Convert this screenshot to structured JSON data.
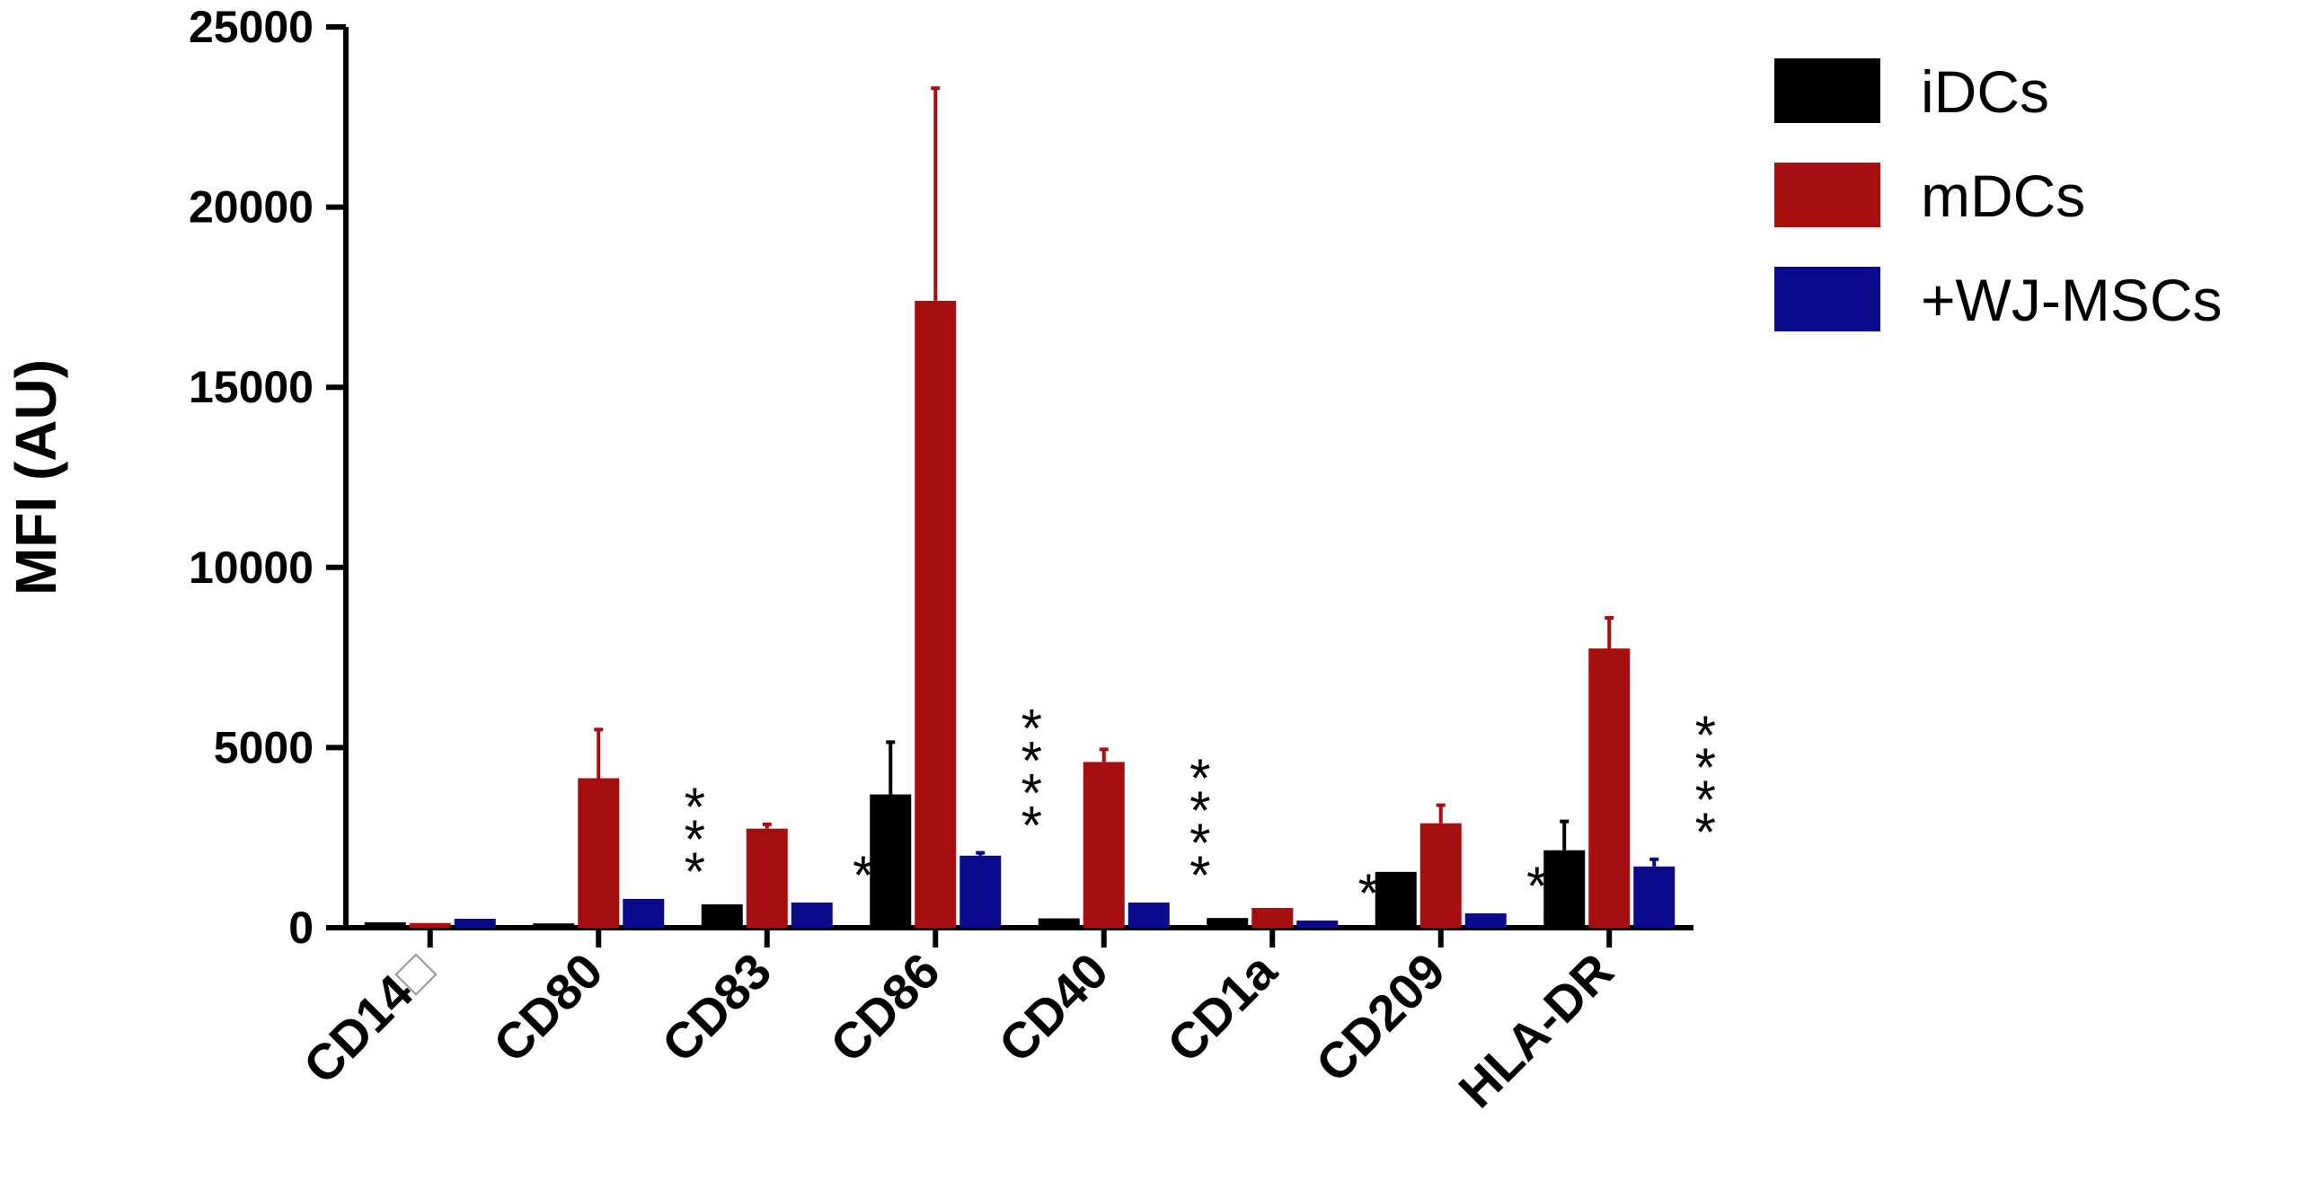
{
  "chart_data": {
    "type": "bar",
    "ylabel": "MFI (AU)",
    "xlabel": "",
    "ylim": [
      0,
      25000
    ],
    "yticks": [
      "0",
      "5000",
      "10000",
      "15000",
      "20000",
      "25000"
    ],
    "categories": [
      "CD14",
      "CD80",
      "CD83",
      "CD86",
      "CD40",
      "CD1a",
      "CD209",
      "HLA-DR"
    ],
    "category_glyphs": [
      "□",
      "",
      "",
      "",
      "",
      "",
      "",
      ""
    ],
    "series": [
      {
        "name": "iDCs",
        "color": "#000000",
        "values": [
          150,
          120,
          650,
          3700,
          260,
          270,
          1550,
          2150
        ],
        "errors": [
          0,
          0,
          0,
          1450,
          0,
          0,
          0,
          800
        ]
      },
      {
        "name": "mDCs",
        "color": "#a50f0f",
        "values": [
          130,
          4150,
          2750,
          17400,
          4600,
          550,
          2900,
          7750
        ],
        "errors": [
          0,
          1350,
          120,
          5900,
          350,
          0,
          500,
          850
        ]
      },
      {
        "name": "+WJ-MSCs",
        "color": "#0a0a8c",
        "values": [
          250,
          800,
          700,
          2000,
          700,
          200,
          400,
          1700
        ],
        "errors": [
          0,
          0,
          0,
          80,
          0,
          0,
          0,
          200
        ]
      }
    ],
    "significance": [
      "",
      "***",
      "*",
      "****",
      "****",
      "*",
      "*",
      "****"
    ],
    "legend_position": "top-right",
    "grid": false
  }
}
